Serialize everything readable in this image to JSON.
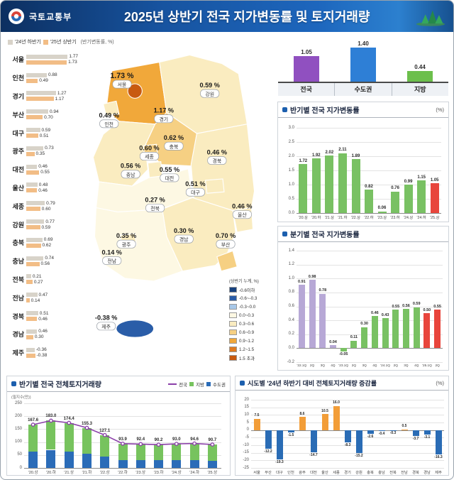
{
  "header": {
    "ministry": "국토교통부",
    "title": "2025년 상반기 전국 지가변동률 및 토지거래량"
  },
  "region_chart": {
    "legend": [
      "'24년 하반기",
      "'25년 상반기"
    ],
    "note": "(반기변동률, %)"
  },
  "map_legend": {
    "title": "(상반기 누계, %)",
    "items": [
      {
        "label": "-0.6이하",
        "color": "#17417e"
      },
      {
        "label": "-0.6~-0.3",
        "color": "#2a5da8"
      },
      {
        "label": "-0.3~0.0",
        "color": "#a8c8e8"
      },
      {
        "label": "0.0~0.3",
        "color": "#fdf8e3"
      },
      {
        "label": "0.3~0.6",
        "color": "#faecc0"
      },
      {
        "label": "0.6~0.9",
        "color": "#f6d083"
      },
      {
        "label": "0.9~1.2",
        "color": "#f1a83a"
      },
      {
        "label": "1.2~1.5",
        "color": "#e07b1f"
      },
      {
        "label": "1.5 초과",
        "color": "#c85a10"
      }
    ]
  },
  "panels": {
    "half_yearly_title": "반기별 전국 지가변동률",
    "half_yearly_unit": "(%)",
    "quarterly_title": "분기별 전국 지가변동률",
    "transactions_title": "반기별 전국 전체토지거래량",
    "transactions_unit": "(필지수(만))",
    "transactions_legend": [
      "전국",
      "지방",
      "수도권"
    ],
    "regional_title": "시도별 '24년 하반기 대비 전체토지거래량 증감률",
    "regional_unit": "(%)"
  },
  "colors": {
    "bar_2024h2": "#d8d3c9",
    "bar_2025h1": "#f2bd86",
    "green": "#79c163",
    "red": "#e8453c",
    "lavender": "#b7a8d6",
    "orange": "#f29d38",
    "neg_blue": "#2a6cb5",
    "line_purple": "#8a3fa8",
    "trans_blue": "#2b6cb8",
    "trans_green": "#77c35e"
  },
  "chart_data": [
    {
      "id": "region_halfyear",
      "type": "bar",
      "orientation": "horizontal",
      "title": "시도별 반기변동률(%)",
      "categories": [
        "서울",
        "인천",
        "경기",
        "부산",
        "대구",
        "광주",
        "대전",
        "울산",
        "세종",
        "강원",
        "충북",
        "충남",
        "전북",
        "전남",
        "경북",
        "경남",
        "제주"
      ],
      "series": [
        {
          "name": "'24년 하반기",
          "values": [
            1.77,
            0.88,
            1.27,
            0.94,
            0.59,
            0.73,
            0.46,
            0.48,
            0.79,
            0.77,
            0.69,
            0.74,
            0.21,
            0.47,
            0.51,
            0.46,
            -0.36
          ]
        },
        {
          "name": "'25년 상반기",
          "values": [
            1.73,
            0.49,
            1.17,
            0.7,
            0.51,
            0.35,
            0.55,
            0.46,
            0.6,
            0.59,
            0.62,
            0.56,
            0.27,
            0.14,
            0.46,
            0.3,
            -0.38
          ]
        }
      ]
    },
    {
      "id": "map",
      "type": "heatmap",
      "title": "'25년 상반기 시도별 지가변동률(상반기 누계, %)",
      "regions": [
        "서울",
        "인천",
        "경기",
        "강원",
        "충북",
        "세종",
        "충남",
        "대전",
        "경북",
        "대구",
        "전북",
        "울산",
        "경남",
        "광주",
        "부산",
        "전남",
        "제주"
      ],
      "values": [
        1.73,
        0.49,
        1.17,
        0.59,
        0.62,
        0.6,
        0.56,
        0.55,
        0.46,
        0.51,
        0.27,
        0.46,
        0.3,
        0.35,
        0.7,
        0.14,
        -0.38
      ]
    },
    {
      "id": "summary",
      "type": "bar",
      "categories": [
        "전국",
        "수도권",
        "지방"
      ],
      "values": [
        1.05,
        1.4,
        0.44
      ],
      "colors": [
        "#9050c0",
        "#2e7fd6",
        "#6cbf4c"
      ],
      "ylim": [
        0,
        1.6
      ]
    },
    {
      "id": "half_yearly",
      "type": "bar",
      "title": "반기별 전국 지가변동률",
      "ylabel": "%",
      "categories": [
        "'20.상",
        "'20.하",
        "'21.상",
        "'21.하",
        "'22.상",
        "'22.하",
        "'23.상",
        "'23.하",
        "'24.상",
        "'24.하",
        "'25.상"
      ],
      "values": [
        1.72,
        1.92,
        2.02,
        2.11,
        1.89,
        0.82,
        0.06,
        0.76,
        0.99,
        1.15,
        1.05
      ],
      "ylim": [
        0,
        3.0
      ],
      "ytick_step": 0.5,
      "grid": true,
      "legend_position": "none"
    },
    {
      "id": "quarterly",
      "type": "bar",
      "title": "분기별 전국 지가변동률",
      "ylabel": "%",
      "categories": [
        "'22.1Q",
        "2Q",
        "3Q",
        "4Q",
        "'23.1Q",
        "2Q",
        "3Q",
        "4Q",
        "'24.1Q",
        "2Q",
        "3Q",
        "4Q",
        "'25.1Q",
        "2Q"
      ],
      "values": [
        0.91,
        0.98,
        0.78,
        0.04,
        -0.05,
        0.11,
        0.3,
        0.46,
        0.43,
        0.55,
        0.56,
        0.59,
        0.5,
        0.55
      ],
      "ylim": [
        -0.2,
        1.4
      ],
      "ytick_step": 0.2,
      "grid": true
    },
    {
      "id": "transactions",
      "type": "bar",
      "title": "반기별 전국 전체토지거래량",
      "ylabel": "필지수(만)",
      "categories": [
        "'20.상",
        "'20.하",
        "'21.상",
        "'21.하",
        "'22.상",
        "'22.하",
        "'23.상",
        "'23.하",
        "'24.상",
        "'24.하",
        "'25.상"
      ],
      "series": [
        {
          "name": "전국",
          "type": "line",
          "values": [
            167.6,
            183.0,
            174.4,
            155.3,
            127.1,
            93.9,
            92.4,
            90.2,
            93.0,
            94.6,
            90.7
          ]
        },
        {
          "name": "수도권",
          "type": "bar-stacked",
          "values_est": [
            62,
            70,
            64,
            55,
            44,
            30,
            30,
            29,
            30,
            31,
            29
          ]
        },
        {
          "name": "지방",
          "type": "bar-stacked",
          "values_est": [
            105.6,
            113.0,
            110.4,
            100.3,
            83.1,
            63.9,
            62.4,
            61.2,
            63.0,
            63.6,
            61.7
          ]
        }
      ],
      "ylim": [
        0,
        250
      ],
      "ytick_step": 50,
      "legend_position": "top-right"
    },
    {
      "id": "regional_change",
      "type": "bar",
      "title": "시도별 '24년 하반기 대비 전체토지거래량 증감률",
      "ylabel": "%",
      "categories": [
        "서울",
        "부산",
        "대구",
        "인천",
        "광주",
        "대전",
        "울산",
        "세종",
        "경기",
        "강원",
        "충북",
        "충남",
        "전북",
        "전남",
        "경북",
        "경남",
        "제주"
      ],
      "values": [
        7.5,
        -12.2,
        -19.3,
        -1.5,
        8.6,
        -14.7,
        10.5,
        16.0,
        -8.3,
        -15.2,
        -2.6,
        -0.4,
        -0.3,
        0.5,
        -3.7,
        -3.1,
        -16.3
      ],
      "ylim": [
        -25,
        20
      ],
      "ytick_step": 5,
      "grid": true
    }
  ]
}
